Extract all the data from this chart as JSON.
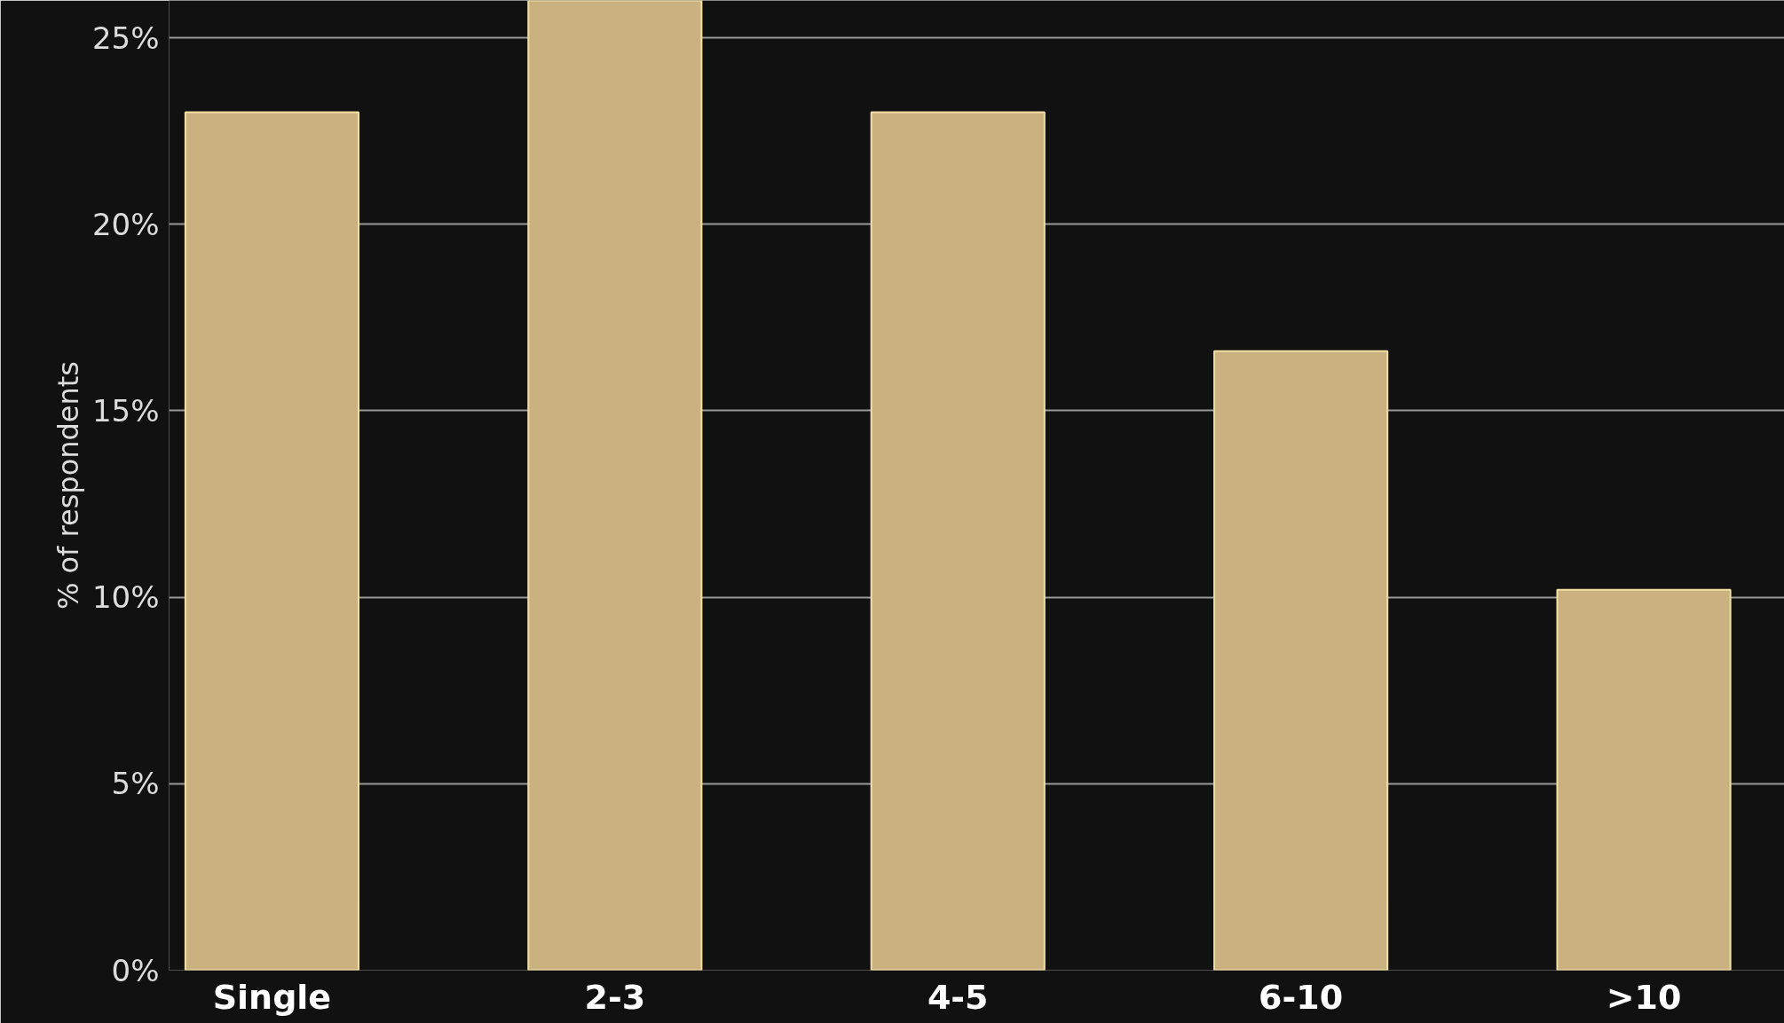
{
  "chart_data": {
    "type": "bar",
    "ylabel": "% of respondents",
    "categories": [
      "Single",
      "2-3",
      "4-5",
      "6-10",
      ">10"
    ],
    "values": [
      23,
      26,
      23,
      16.6,
      10.2
    ],
    "color": "#c9b27f",
    "ylim": [
      0,
      26
    ],
    "yticks": [
      {
        "value": 0,
        "label": "0%"
      },
      {
        "value": 5,
        "label": "5%"
      },
      {
        "value": 10,
        "label": "10%"
      },
      {
        "value": 15,
        "label": "15%"
      },
      {
        "value": 20,
        "label": "20%"
      },
      {
        "value": 25,
        "label": "25%"
      }
    ],
    "grid": "y"
  }
}
